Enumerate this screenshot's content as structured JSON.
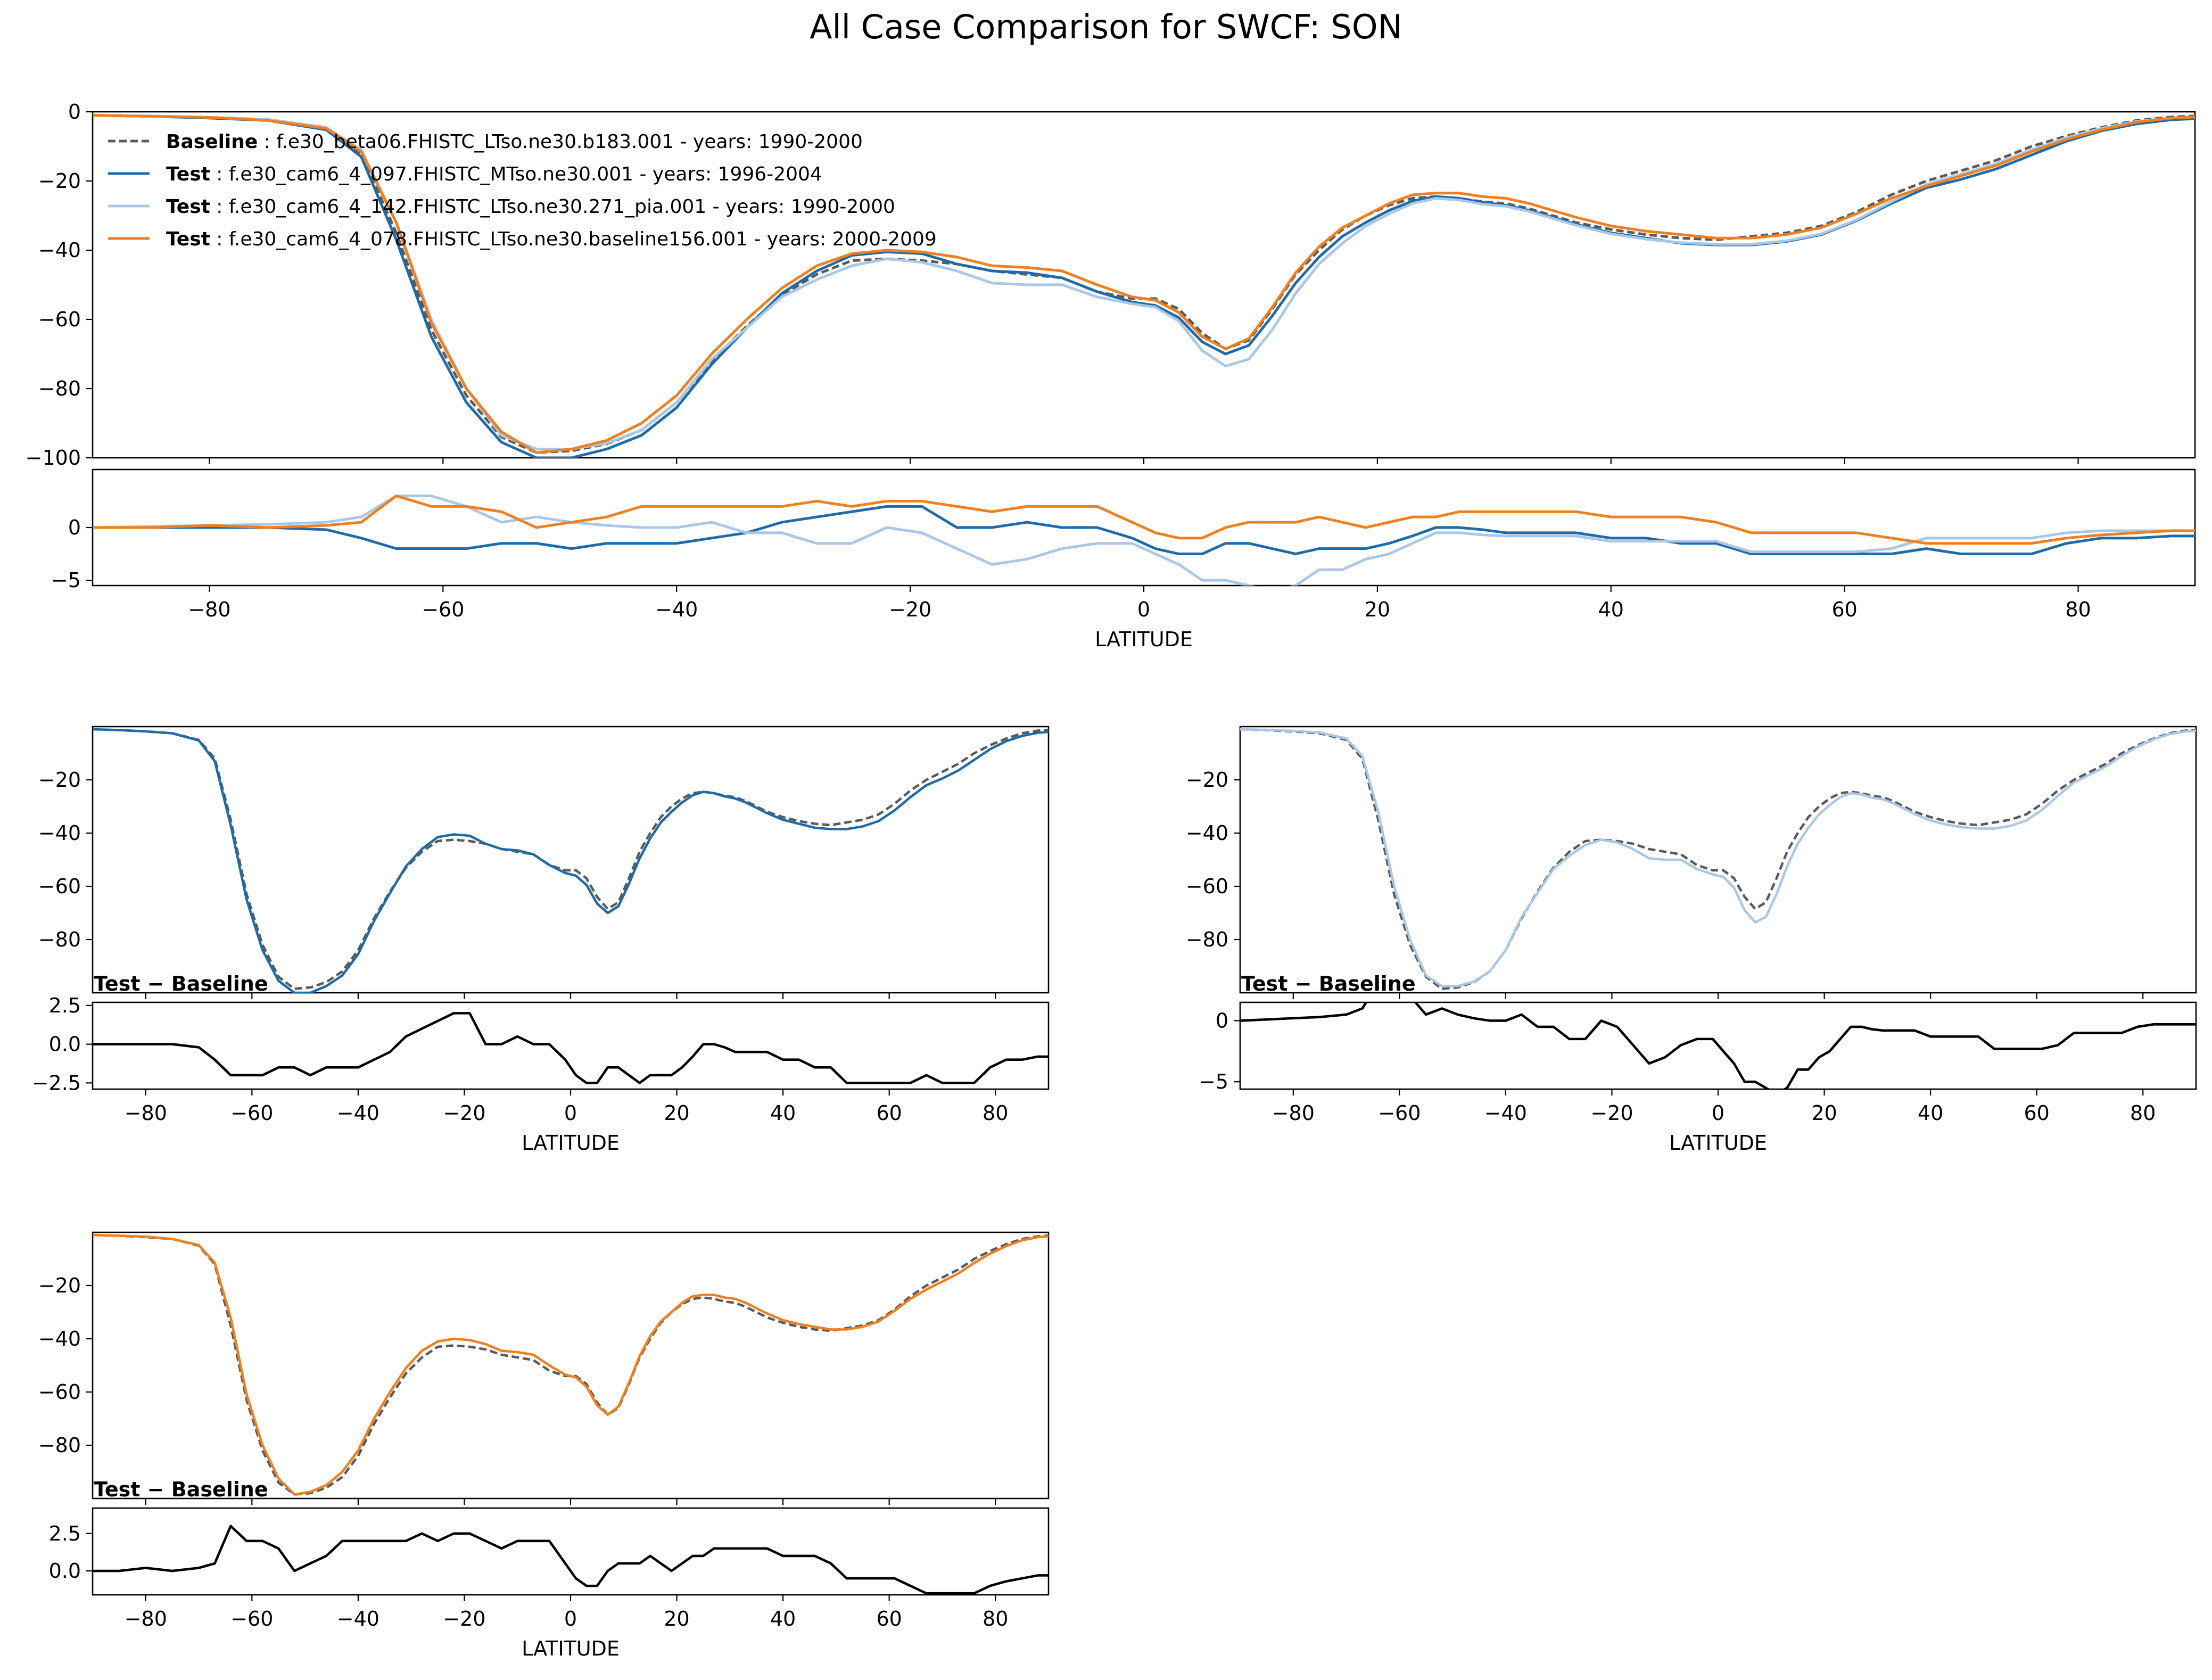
{
  "figure": {
    "title": "All Case Comparison for SWCF: SON"
  },
  "legend": {
    "entries": [
      {
        "label_bold": "Baseline",
        "text": "f.e30_beta06.FHISTC_LTso.ne30.b183.001 - years: 1990-2000",
        "color": "#5a5a5a",
        "dashed": true
      },
      {
        "label_bold": "Test",
        "text": "f.e30_cam6_4_097.FHISTC_MTso.ne30.001 - years: 1996-2004",
        "color": "#1f6aa8",
        "dashed": false
      },
      {
        "label_bold": "Test",
        "text": "f.e30_cam6_4_142.FHISTC_LTso.ne30.271_pia.001 - years: 1990-2000",
        "color": "#a9c7e6",
        "dashed": false
      },
      {
        "label_bold": "Test",
        "text": "f.e30_cam6_4_078.FHISTC_LTso.ne30.baseline156.001 - years: 2000-2009",
        "color": "#f07f1e",
        "dashed": false
      }
    ]
  },
  "colors": {
    "baseline": "#5a5a5a",
    "test1": "#1f6aa8",
    "test2": "#a9c7e6",
    "test3": "#f07f1e",
    "diff": "#000000"
  },
  "chart_data": {
    "type": "line",
    "title": "All Case Comparison for SWCF: SON",
    "xlabel": "LATITUDE",
    "xlim": [
      -90,
      90
    ],
    "xticks": [
      -80,
      -60,
      -40,
      -20,
      0,
      20,
      40,
      60,
      80
    ],
    "x": [
      -90,
      -85,
      -80,
      -75,
      -70,
      -67,
      -64,
      -61,
      -58,
      -55,
      -52,
      -49,
      -46,
      -43,
      -40,
      -37,
      -34,
      -31,
      -28,
      -25,
      -22,
      -19,
      -16,
      -13,
      -10,
      -7,
      -4,
      -1,
      1,
      3,
      5,
      7,
      9,
      11,
      13,
      15,
      17,
      19,
      21,
      23,
      25,
      27,
      29,
      31,
      33,
      35,
      37,
      40,
      43,
      46,
      49,
      52,
      55,
      58,
      61,
      64,
      67,
      70,
      73,
      76,
      79,
      82,
      85,
      88,
      90
    ],
    "baseline": [
      -1,
      -1.3,
      -1.8,
      -2.5,
      -5,
      -12,
      -35,
      -63,
      -82,
      -94,
      -98.5,
      -98,
      -96,
      -92,
      -84,
      -72,
      -62,
      -53,
      -47,
      -43,
      -42.5,
      -43,
      -44,
      -46,
      -47,
      -48,
      -52,
      -54,
      -54,
      -57,
      -64,
      -68.5,
      -66,
      -57,
      -47,
      -40,
      -34,
      -30,
      -27,
      -25,
      -24.5,
      -25,
      -26,
      -26.5,
      -28,
      -30,
      -32,
      -34,
      -35.5,
      -36.5,
      -37,
      -36,
      -35,
      -33,
      -29,
      -24,
      -20,
      -17,
      -14,
      -10,
      -7,
      -4.5,
      -2.5,
      -1.5,
      -1.2,
      -1
    ],
    "tests": [
      {
        "name": "f.e30_cam6_4_097.FHISTC_MTso.ne30.001 - years: 1996-2004",
        "key": "test1",
        "values": [
          -1,
          -1.3,
          -1.8,
          -2.5,
          -5.2,
          -13,
          -37,
          -65,
          -84,
          -95.5,
          -100,
          -100,
          -97.5,
          -93.5,
          -85.5,
          -73,
          -62.5,
          -52.5,
          -46,
          -41.5,
          -40.5,
          -41,
          -44,
          -46,
          -46.5,
          -48,
          -52,
          -55,
          -56,
          -59.5,
          -66.5,
          -70,
          -67.5,
          -59,
          -49.5,
          -42,
          -36,
          -32,
          -28.5,
          -25.8,
          -24.5,
          -25,
          -26.2,
          -27,
          -28.5,
          -30.5,
          -32.5,
          -35,
          -36.5,
          -38,
          -38.5,
          -38.5,
          -37.5,
          -35.5,
          -31.5,
          -26.5,
          -22,
          -19.5,
          -16.5,
          -12.5,
          -8.5,
          -5.5,
          -3.5,
          -2.3,
          -2,
          -1.8
        ]
      },
      {
        "name": "f.e30_cam6_4_142.FHISTC_LTso.ne30.271_pia.001 - years: 1990-2000",
        "key": "test2",
        "values": [
          -1,
          -1.2,
          -1.6,
          -2.2,
          -4.5,
          -11,
          -32,
          -60,
          -80,
          -93.5,
          -97.5,
          -97.5,
          -95.8,
          -92,
          -84,
          -71.5,
          -62.5,
          -53.5,
          -48.5,
          -44.5,
          -42.5,
          -43.5,
          -46,
          -49.5,
          -50,
          -50,
          -53.5,
          -55.5,
          -56.5,
          -60.5,
          -69,
          -73.5,
          -71.5,
          -63,
          -52.5,
          -44,
          -38,
          -33,
          -29.5,
          -26.5,
          -25,
          -25.5,
          -26.7,
          -27.3,
          -28.8,
          -30.8,
          -32.8,
          -35.3,
          -36.8,
          -37.8,
          -38.3,
          -38.3,
          -37.3,
          -35.3,
          -31.3,
          -26,
          -21,
          -18,
          -15,
          -11,
          -7.5,
          -4.8,
          -2.8,
          -1.8,
          -1.5,
          -1.2
        ]
      },
      {
        "name": "f.e30_cam6_4_078.FHISTC_LTso.ne30.baseline156.001 - years: 2000-2009",
        "key": "test3",
        "values": [
          -1,
          -1.3,
          -1.6,
          -2.5,
          -4.8,
          -11.5,
          -32,
          -61,
          -80,
          -92.5,
          -98.5,
          -97.5,
          -95,
          -90,
          -82,
          -70,
          -60,
          -51,
          -44.5,
          -41,
          -40,
          -40.5,
          -42,
          -44.5,
          -45,
          -46,
          -50,
          -53.5,
          -54.5,
          -58,
          -65,
          -68.5,
          -65.5,
          -56.5,
          -46.5,
          -39,
          -33.5,
          -30,
          -26.5,
          -24,
          -23.5,
          -23.5,
          -24.5,
          -25,
          -26.5,
          -28.5,
          -30.5,
          -33,
          -34.5,
          -35.5,
          -36.5,
          -36.5,
          -35.5,
          -33.5,
          -29.5,
          -25,
          -21.5,
          -18.5,
          -15.5,
          -11.5,
          -8,
          -5.2,
          -3,
          -1.8,
          -1.5,
          -1.3
        ]
      }
    ],
    "main_panel": {
      "ylim": [
        -100,
        0
      ],
      "yticks": [
        0,
        -20,
        -40,
        -60,
        -80,
        -100
      ]
    },
    "diff_panel": {
      "ylim": [
        -5.5,
        5.5
      ],
      "yticks": [
        0,
        -5
      ]
    },
    "subplots": [
      {
        "test_index": 0,
        "annotation": "Test − Baseline",
        "ylim": [
          -100,
          0
        ],
        "yticks": [
          -20,
          -40,
          -60,
          -80
        ],
        "diff_ylim": [
          -2.9,
          2.7
        ],
        "diff_yticks": [
          2.5,
          0.0,
          -2.5
        ],
        "diff_tick_labels": [
          "2.5",
          "0.0",
          "−2.5"
        ]
      },
      {
        "test_index": 1,
        "annotation": "Test − Baseline",
        "ylim": [
          -100,
          0
        ],
        "yticks": [
          -20,
          -40,
          -60,
          -80
        ],
        "diff_ylim": [
          -5.6,
          1.5
        ],
        "diff_yticks": [
          0,
          -5
        ],
        "diff_tick_labels": [
          "0",
          "−5"
        ]
      },
      {
        "test_index": 2,
        "annotation": "Test − Baseline",
        "ylim": [
          -100,
          0
        ],
        "yticks": [
          -20,
          -40,
          -60,
          -80
        ],
        "diff_ylim": [
          -1.6,
          4.2
        ],
        "diff_yticks": [
          2.5,
          0.0
        ],
        "diff_tick_labels": [
          "2.5",
          "0.0"
        ]
      }
    ]
  }
}
